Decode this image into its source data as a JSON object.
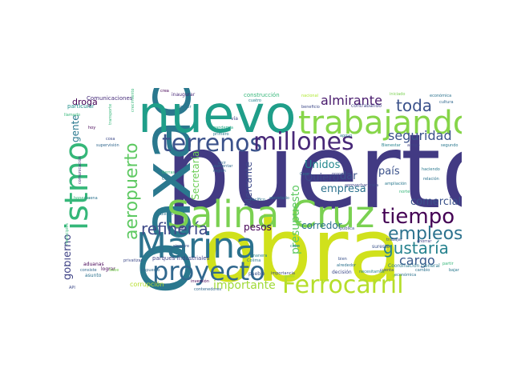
{
  "word_cloud": {
    "words": [
      {
        "text": "puerto",
        "color": "#423a83"
      },
      {
        "text": "obra",
        "color": "#d0e11c"
      },
      {
        "text": "Oaxaca",
        "color": "#2a788e"
      },
      {
        "text": "nuevo",
        "color": "#1f9e89"
      },
      {
        "text": "Salina Cruz",
        "color": "#7ad151"
      },
      {
        "text": "trabajando",
        "color": "#86d549"
      },
      {
        "text": "Marina",
        "color": "#2c728e"
      },
      {
        "text": "istmo",
        "color": "#35b779"
      },
      {
        "text": "proyecto",
        "color": "#31688e"
      },
      {
        "text": "terrenos",
        "color": "#3b528b"
      },
      {
        "text": "millones",
        "color": "#482878"
      },
      {
        "text": "Ferrocarril",
        "color": "#b5de2b"
      },
      {
        "text": "tiempo",
        "color": "#440154"
      },
      {
        "text": "aeropuerto",
        "color": "#5ec962"
      },
      {
        "text": "empleos",
        "color": "#2c728e"
      },
      {
        "text": "refinería",
        "color": "#3e4a89"
      },
      {
        "text": "gustaría",
        "color": "#26828e"
      },
      {
        "text": "toda",
        "color": "#3b528b"
      },
      {
        "text": "almirante",
        "color": "#481a6c"
      },
      {
        "text": "seguridad",
        "color": "#3b528b"
      },
      {
        "text": "cargo",
        "color": "#38598c"
      },
      {
        "text": "importante",
        "color": "#a0da39"
      },
      {
        "text": "gobierno",
        "color": "#414487"
      },
      {
        "text": "gente",
        "color": "#2a788e"
      },
      {
        "text": "presupuesto",
        "color": "#5ec962"
      },
      {
        "text": "Secretaría",
        "color": "#6ece58"
      },
      {
        "text": "Mercante",
        "color": "#3e4a89"
      },
      {
        "text": "Unidos",
        "color": "#23888e"
      },
      {
        "text": "Quiero",
        "color": "#3e4a89"
      },
      {
        "text": "país",
        "color": "#3b528b"
      },
      {
        "text": "dar",
        "color": "#3b528b"
      },
      {
        "text": "empresa",
        "color": "#2c728e"
      },
      {
        "text": "comercial",
        "color": "#3b528b"
      },
      {
        "text": "pesos",
        "color": "#440154"
      },
      {
        "text": "corredor",
        "color": "#2c728e"
      },
      {
        "text": "droga",
        "color": "#440154"
      },
      {
        "text": "Comunicaciones",
        "color": "#472d7b"
      },
      {
        "text": "particular",
        "color": "#21918c"
      },
      {
        "text": "llamado",
        "color": "#35b779"
      },
      {
        "text": "transporte",
        "color": "#35b779"
      },
      {
        "text": "crecimiento",
        "color": "#35b779"
      },
      {
        "text": "inaugurar",
        "color": "#482878"
      },
      {
        "text": "construcción",
        "color": "#35b779"
      },
      {
        "text": "cuatro",
        "color": "#26828e"
      },
      {
        "text": "nacional",
        "color": "#ade82d"
      },
      {
        "text": "iniciado",
        "color": "#7ad151"
      },
      {
        "text": "económica",
        "color": "#2c728e"
      },
      {
        "text": "cultura",
        "color": "#31688e"
      },
      {
        "text": "beneficio",
        "color": "#3e4a89"
      },
      {
        "text": "contrabando",
        "color": "#414487"
      },
      {
        "text": "pandemia",
        "color": "#22a884"
      },
      {
        "text": "primero",
        "color": "#2a788e"
      },
      {
        "text": "unir",
        "color": "#31688e"
      },
      {
        "text": "región",
        "color": "#31688e"
      },
      {
        "text": "aumentar",
        "color": "#31688e"
      },
      {
        "text": "vía",
        "color": "#414487"
      },
      {
        "text": "mujer",
        "color": "#2c728e"
      },
      {
        "text": "Bienestar",
        "color": "#26828e"
      },
      {
        "text": "amigo",
        "color": "#414487"
      },
      {
        "text": "segundo",
        "color": "#2a788e"
      },
      {
        "text": "haciendo",
        "color": "#2a788e"
      },
      {
        "text": "relación",
        "color": "#2c728e"
      },
      {
        "text": "ampliación",
        "color": "#2a788e"
      },
      {
        "text": "aprovechar",
        "color": "#414487"
      },
      {
        "text": "trata",
        "color": "#3e4a89"
      },
      {
        "text": "norte",
        "color": "#35b779"
      },
      {
        "text": "Coordinación General",
        "color": "#2a788e"
      },
      {
        "text": "sureste",
        "color": "#3b528b"
      },
      {
        "text": "pública",
        "color": "#3b528b"
      },
      {
        "text": "trabajar",
        "color": "#3b528b"
      },
      {
        "text": "ahorrar",
        "color": "#414487"
      },
      {
        "text": "partir",
        "color": "#35b779"
      },
      {
        "text": "bajar",
        "color": "#2a788e"
      },
      {
        "text": "cambio",
        "color": "#2c728e"
      },
      {
        "text": "cuenta",
        "color": "#3e4a89"
      },
      {
        "text": "económica",
        "color": "#2c728e"
      },
      {
        "text": "decisión",
        "color": "#3e4a89"
      },
      {
        "text": "necesitamos",
        "color": "#26828e"
      },
      {
        "text": "bien",
        "color": "#3b528b"
      },
      {
        "text": "alrededor",
        "color": "#2c728e"
      },
      {
        "text": "parques industriales",
        "color": "#414487"
      },
      {
        "text": "siempre",
        "color": "#3b528b"
      },
      {
        "text": "impuesto",
        "color": "#31688e"
      },
      {
        "text": "corrupción",
        "color": "#b5de2b"
      },
      {
        "text": "inversión",
        "color": "#440154"
      },
      {
        "text": "contenedores",
        "color": "#31688e"
      },
      {
        "text": "privatizar",
        "color": "#3e4a89"
      },
      {
        "text": "Colima",
        "color": "#2a788e"
      },
      {
        "text": "pueblo",
        "color": "#3b528b"
      },
      {
        "text": "aduanas",
        "color": "#440154"
      },
      {
        "text": "lograr",
        "color": "#440154"
      },
      {
        "text": "asunto",
        "color": "#2c728e"
      },
      {
        "text": "API",
        "color": "#3e4a89"
      },
      {
        "text": "municipios",
        "color": "#35b779"
      },
      {
        "text": "bienes",
        "color": "#2c728e"
      },
      {
        "text": "Pacífico",
        "color": "#2c728e"
      },
      {
        "text": "secretario",
        "color": "#2c728e"
      },
      {
        "text": "importancia",
        "color": "#3e4a89"
      },
      {
        "text": "manera",
        "color": "#26828e"
      },
      {
        "text": "cabo",
        "color": "#26828e"
      },
      {
        "text": "Cero",
        "color": "#2c728e"
      },
      {
        "text": "propósito",
        "color": "#414487"
      },
      {
        "text": "apoyo",
        "color": "#2a788e"
      },
      {
        "text": "hoy",
        "color": "#440154"
      },
      {
        "text": "cosa",
        "color": "#3e4a89"
      },
      {
        "text": "tierras",
        "color": "#35b779"
      },
      {
        "text": "Ciudad",
        "color": "#2a788e"
      },
      {
        "text": "supervisión",
        "color": "#31688e"
      },
      {
        "text": "comunicación",
        "color": "#472d7b"
      },
      {
        "text": "buena",
        "color": "#2c728e"
      },
      {
        "text": "honesta",
        "color": "#35b779"
      },
      {
        "text": "consiste",
        "color": "#31688e"
      },
      {
        "text": "Sabe",
        "color": "#7ad151"
      },
      {
        "text": "crea",
        "color": "#440154"
      }
    ]
  }
}
